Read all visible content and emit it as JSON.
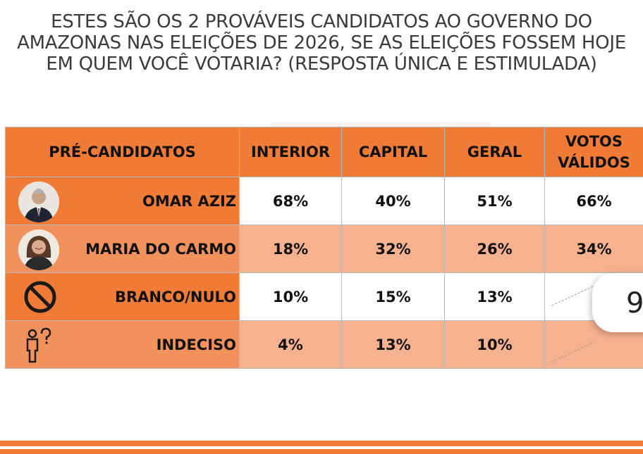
{
  "title_lines": [
    "ESTES SÃO OS 2 PROVÁVEIS CANDIDATOS AO GOVERNO DO",
    "AMAZONAS NAS ELEIÇÕES DE 2026, SE AS ELEIÇÕES FOSSEM HOJE",
    "EM QUEM VOCÊ VOTARIA? (RESPOSTA ÚNICA E ESTIMULADA)"
  ],
  "overlay_digit": "9",
  "colors": {
    "header_orange": "#ef7b36",
    "row_peach": "#f6b18f",
    "label_peach": "#f1915c",
    "border": "#b9b9b9"
  },
  "chart_data": {
    "type": "table",
    "columns": [
      "PRÉ-CANDIDATOS",
      "INTERIOR",
      "CAPITAL",
      "GERAL",
      "VOTOS VÁLIDOS"
    ],
    "votos_validos_lines": [
      "VOTOS",
      "VÁLIDOS"
    ],
    "rows": [
      {
        "name": "OMAR AZIZ",
        "icon": "candidate-photo",
        "values": [
          "68%",
          "40%",
          "51%",
          "66%"
        ]
      },
      {
        "name": "MARIA DO CARMO",
        "icon": "candidate-photo",
        "values": [
          "18%",
          "32%",
          "26%",
          "34%"
        ]
      },
      {
        "name": "BRANCO/NULO",
        "icon": "prohibited-icon",
        "values": [
          "10%",
          "15%",
          "13%",
          ""
        ]
      },
      {
        "name": "INDECISO",
        "icon": "undecided-person-icon",
        "values": [
          "4%",
          "13%",
          "10%",
          ""
        ]
      }
    ]
  }
}
